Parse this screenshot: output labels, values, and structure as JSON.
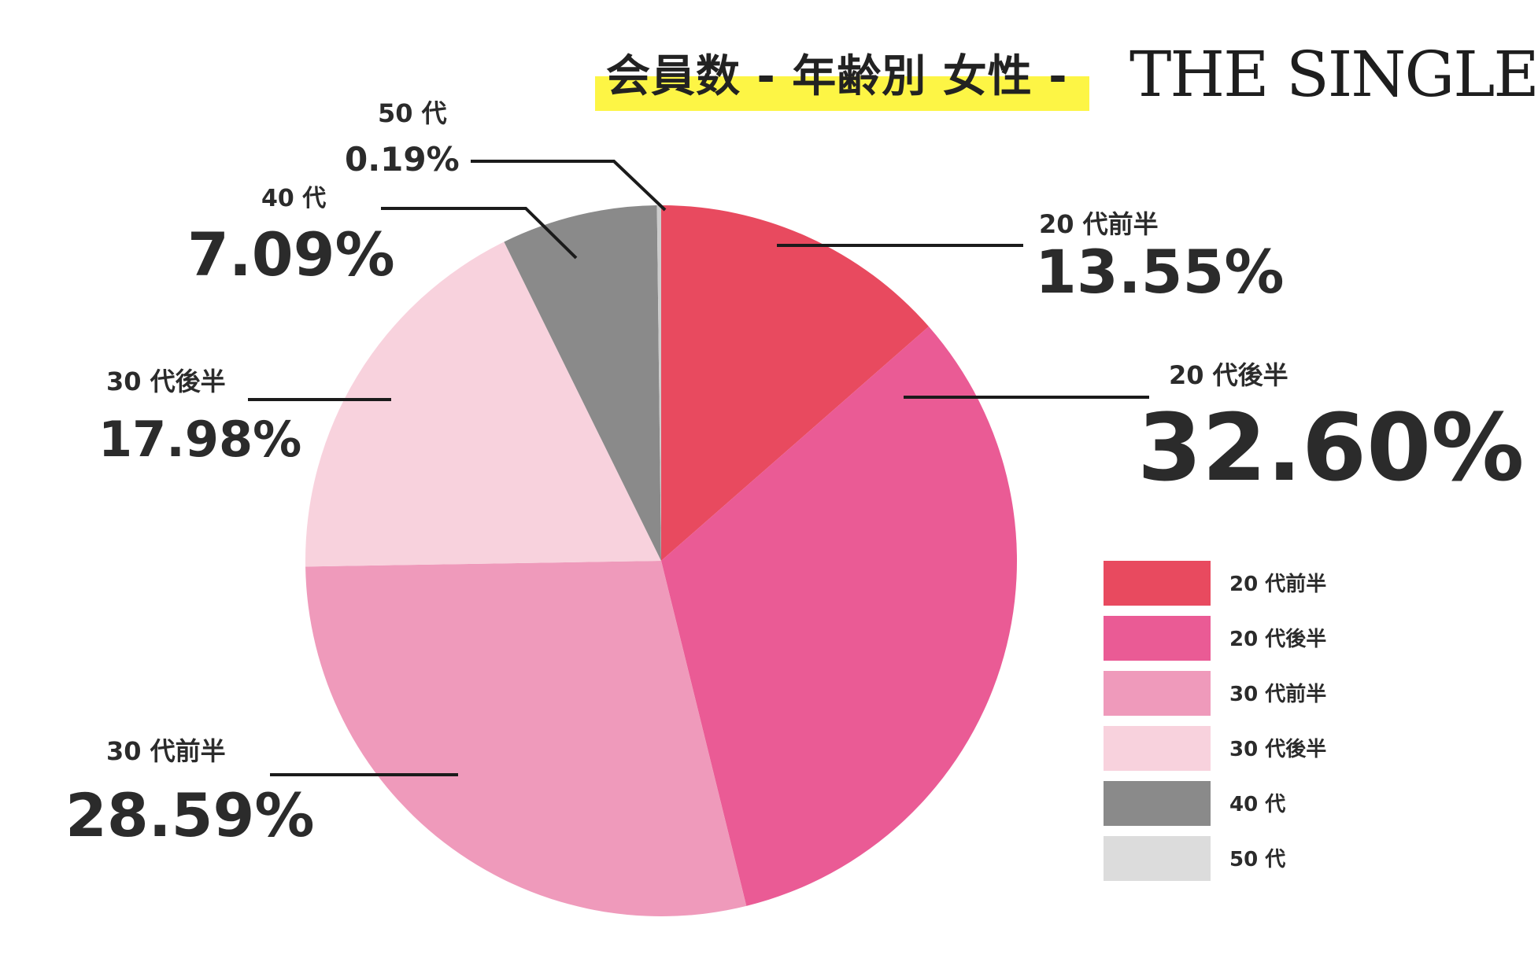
{
  "title": "会員数 - 年齢別 女性 -",
  "brand": "THE SINGLE",
  "chart_data": {
    "type": "pie",
    "title": "会員数 - 年齢別 女性 -",
    "legend_position": "right",
    "slices": [
      {
        "label": "20 代前半",
        "value": 13.55,
        "display": "13.55%",
        "color": "#e84a5f"
      },
      {
        "label": "20 代後半",
        "value": 32.6,
        "display": "32.60%",
        "color": "#ea5b95"
      },
      {
        "label": "30 代前半",
        "value": 28.59,
        "display": "28.59%",
        "color": "#ef9abb"
      },
      {
        "label": "30 代後半",
        "value": 17.98,
        "display": "17.98%",
        "color": "#f8d2dd"
      },
      {
        "label": "40 代",
        "value": 7.09,
        "display": "7.09%",
        "color": "#8a8a8a"
      },
      {
        "label": "50 代",
        "value": 0.19,
        "display": "0.19%",
        "color": "#cccccc"
      }
    ]
  },
  "legend": [
    {
      "label": "20 代前半",
      "color": "#e84a5f"
    },
    {
      "label": "20 代後半",
      "color": "#ea5b95"
    },
    {
      "label": "30 代前半",
      "color": "#ef9abb"
    },
    {
      "label": "30 代後半",
      "color": "#f8d2dd"
    },
    {
      "label": "40 代",
      "color": "#8a8a8a"
    },
    {
      "label": "50 代",
      "color": "#dcdcdc"
    }
  ]
}
